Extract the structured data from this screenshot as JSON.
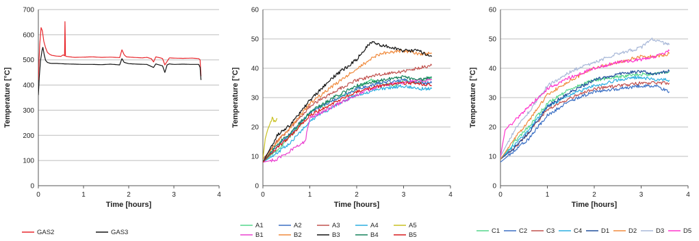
{
  "chart_data": [
    {
      "type": "line",
      "xlabel": "Time [hours]",
      "ylabel": "Temperature [°C]",
      "xlim": [
        0,
        4
      ],
      "ylim": [
        0,
        700
      ],
      "xticks": [
        0,
        1,
        2,
        3,
        4
      ],
      "yticks": [
        0,
        100,
        200,
        300,
        400,
        500,
        600,
        700
      ],
      "grid": "horizontal",
      "legend": "bottom",
      "series": [
        {
          "name": "GAS2",
          "color": "#e8262b",
          "x": [
            0,
            0.03,
            0.06,
            0.09,
            0.12,
            0.16,
            0.2,
            0.25,
            0.3,
            0.4,
            0.5,
            0.55,
            0.58,
            0.59,
            0.6,
            0.61,
            0.7,
            0.8,
            1.0,
            1.2,
            1.4,
            1.6,
            1.8,
            1.85,
            1.9,
            1.95,
            2.1,
            2.3,
            2.4,
            2.5,
            2.55,
            2.6,
            2.7,
            2.75,
            2.8,
            2.9,
            3.0,
            3.2,
            3.4,
            3.55,
            3.58,
            3.6
          ],
          "y": [
            420,
            560,
            628,
            615,
            575,
            548,
            530,
            522,
            518,
            515,
            514,
            520,
            516,
            652,
            517,
            514,
            512,
            510,
            511,
            512,
            510,
            511,
            509,
            540,
            520,
            512,
            510,
            508,
            510,
            505,
            492,
            512,
            508,
            505,
            480,
            508,
            507,
            506,
            507,
            505,
            500,
            435
          ]
        },
        {
          "name": "GAS3",
          "color": "#111111",
          "x": [
            0,
            0.02,
            0.05,
            0.08,
            0.1,
            0.13,
            0.16,
            0.2,
            0.25,
            0.3,
            0.4,
            0.5,
            0.6,
            0.8,
            1.0,
            1.2,
            1.4,
            1.6,
            1.8,
            1.85,
            1.9,
            2.0,
            2.2,
            2.4,
            2.55,
            2.6,
            2.75,
            2.8,
            2.85,
            2.9,
            3.0,
            3.2,
            3.4,
            3.55,
            3.58,
            3.6
          ],
          "y": [
            360,
            430,
            500,
            535,
            550,
            520,
            498,
            490,
            487,
            486,
            486,
            485,
            484,
            483,
            482,
            482,
            481,
            483,
            480,
            505,
            490,
            485,
            483,
            482,
            470,
            484,
            476,
            450,
            480,
            484,
            482,
            483,
            482,
            482,
            470,
            420
          ]
        }
      ]
    },
    {
      "type": "line",
      "xlabel": "Time [hours]",
      "ylabel": "Temperature [°C]",
      "xlim": [
        0,
        4
      ],
      "ylim": [
        0,
        60
      ],
      "xticks": [
        0,
        1,
        2,
        3,
        4
      ],
      "yticks": [
        0,
        10,
        20,
        30,
        40,
        50,
        60
      ],
      "grid": "horizontal",
      "legend": "bottom",
      "series": [
        {
          "name": "A1",
          "color": "#52d68a",
          "x": [
            0,
            0.3,
            0.6,
            1.0,
            1.5,
            2.0,
            2.3,
            2.5,
            2.8,
            3.0,
            3.3,
            3.6
          ],
          "y": [
            8,
            12,
            17,
            25,
            29,
            33,
            36,
            35,
            34,
            36,
            35,
            37
          ]
        },
        {
          "name": "A2",
          "color": "#3a6fc4",
          "x": [
            0,
            0.3,
            0.6,
            1.0,
            1.5,
            2.0,
            2.5,
            3.0,
            3.3,
            3.6
          ],
          "y": [
            8,
            13,
            18,
            25,
            29,
            33,
            35,
            36,
            35,
            35
          ]
        },
        {
          "name": "A3",
          "color": "#c0504d",
          "x": [
            0,
            0.3,
            0.6,
            1.0,
            1.5,
            2.0,
            2.5,
            3.0,
            3.3,
            3.6
          ],
          "y": [
            9,
            15,
            20,
            27,
            32,
            36,
            38,
            39,
            40,
            41
          ]
        },
        {
          "name": "A4",
          "color": "#2aaee0",
          "x": [
            0,
            0.3,
            0.6,
            1.0,
            1.5,
            2.0,
            2.5,
            3.0,
            3.3,
            3.6
          ],
          "y": [
            8,
            11,
            15,
            22,
            27,
            31,
            33,
            34,
            33,
            33
          ]
        },
        {
          "name": "A5",
          "color": "#c8c020",
          "x": [
            0,
            0.05,
            0.1,
            0.15,
            0.2,
            0.25,
            0.3
          ],
          "y": [
            9,
            16,
            19,
            21,
            23,
            22,
            23
          ]
        },
        {
          "name": "B1",
          "color": "#ea40d0",
          "x": [
            0,
            0.3,
            0.6,
            0.9,
            1.0,
            1.5,
            2.0,
            2.5,
            3.0,
            3.3,
            3.6
          ],
          "y": [
            8,
            9,
            12,
            15,
            23,
            27,
            31,
            34,
            35,
            36,
            36
          ]
        },
        {
          "name": "B2",
          "color": "#f08a3c",
          "x": [
            0,
            0.3,
            0.6,
            1.0,
            1.5,
            2.0,
            2.5,
            3.0,
            3.3,
            3.6
          ],
          "y": [
            8,
            15,
            20,
            28,
            34,
            40,
            45,
            46,
            45,
            45
          ]
        },
        {
          "name": "B3",
          "color": "#111111",
          "x": [
            0,
            0.3,
            0.6,
            1.0,
            1.5,
            2.0,
            2.3,
            2.5,
            2.8,
            3.0,
            3.3,
            3.6
          ],
          "y": [
            8,
            17,
            21,
            29,
            37,
            43,
            49,
            48,
            47,
            46,
            46,
            44
          ]
        },
        {
          "name": "B4",
          "color": "#12805a",
          "x": [
            0,
            0.3,
            0.6,
            1.0,
            1.5,
            2.0,
            2.5,
            3.0,
            3.3,
            3.6
          ],
          "y": [
            8,
            14,
            18,
            25,
            30,
            34,
            36,
            37,
            36,
            37
          ]
        },
        {
          "name": "B5",
          "color": "#d7191c",
          "x": [
            0,
            0.3,
            0.6,
            1.0,
            1.5,
            2.0,
            2.5,
            3.0,
            3.3,
            3.6
          ],
          "y": [
            8,
            13,
            17,
            24,
            28,
            32,
            34,
            35,
            35,
            34
          ]
        }
      ]
    },
    {
      "type": "line",
      "xlabel": "Time [hours]",
      "ylabel": "Temperature [°C]",
      "xlim": [
        0,
        4
      ],
      "ylim": [
        0,
        60
      ],
      "xticks": [
        0,
        1,
        2,
        3,
        4
      ],
      "yticks": [
        0,
        10,
        20,
        30,
        40,
        50,
        60
      ],
      "grid": "horizontal",
      "legend": "bottom",
      "series": [
        {
          "name": "C1",
          "color": "#52d68a",
          "x": [
            0,
            0.3,
            0.6,
            1.0,
            1.5,
            2.0,
            2.5,
            3.0,
            3.3,
            3.6
          ],
          "y": [
            9,
            15,
            20,
            28,
            33,
            36,
            37,
            38,
            38,
            39
          ]
        },
        {
          "name": "C2",
          "color": "#3a6fc4",
          "x": [
            0,
            0.3,
            0.6,
            1.0,
            1.5,
            2.0,
            2.5,
            3.0,
            3.3,
            3.6
          ],
          "y": [
            8,
            12,
            16,
            24,
            29,
            32,
            33,
            34,
            34,
            32
          ]
        },
        {
          "name": "C3",
          "color": "#c0504d",
          "x": [
            0,
            0.3,
            0.6,
            1.0,
            1.5,
            2.0,
            2.5,
            3.0,
            3.3,
            3.6
          ],
          "y": [
            9,
            13,
            18,
            26,
            30,
            33,
            34,
            35,
            35,
            35
          ]
        },
        {
          "name": "C4",
          "color": "#2aaee0",
          "x": [
            0,
            0.3,
            0.6,
            1.0,
            1.5,
            2.0,
            2.5,
            3.0,
            3.3,
            3.6
          ],
          "y": [
            9,
            14,
            19,
            27,
            31,
            34,
            36,
            37,
            36,
            36
          ]
        },
        {
          "name": "D1",
          "color": "#1f4e9c",
          "x": [
            0,
            0.3,
            0.6,
            1.0,
            1.5,
            2.0,
            2.5,
            3.0,
            3.3,
            3.6
          ],
          "y": [
            9,
            13,
            18,
            27,
            32,
            36,
            38,
            39,
            38,
            39
          ]
        },
        {
          "name": "D2",
          "color": "#f08a3c",
          "x": [
            0,
            0.3,
            0.6,
            1.0,
            1.5,
            2.0,
            2.5,
            3.0,
            3.3,
            3.6
          ],
          "y": [
            9,
            16,
            22,
            31,
            36,
            40,
            42,
            44,
            44,
            45
          ]
        },
        {
          "name": "D3",
          "color": "#a8b8d8",
          "x": [
            0,
            0.3,
            0.6,
            1.0,
            1.5,
            2.0,
            2.5,
            3.0,
            3.2,
            3.6
          ],
          "y": [
            10,
            19,
            25,
            34,
            39,
            42,
            45,
            47,
            50,
            48
          ]
        },
        {
          "name": "D5",
          "color": "#ff33cc",
          "x": [
            0,
            0.1,
            0.3,
            0.6,
            1.0,
            1.5,
            2.0,
            2.5,
            3.0,
            3.3,
            3.6
          ],
          "y": [
            10,
            19,
            22,
            27,
            33,
            37,
            40,
            42,
            43,
            44,
            46
          ]
        }
      ]
    }
  ]
}
